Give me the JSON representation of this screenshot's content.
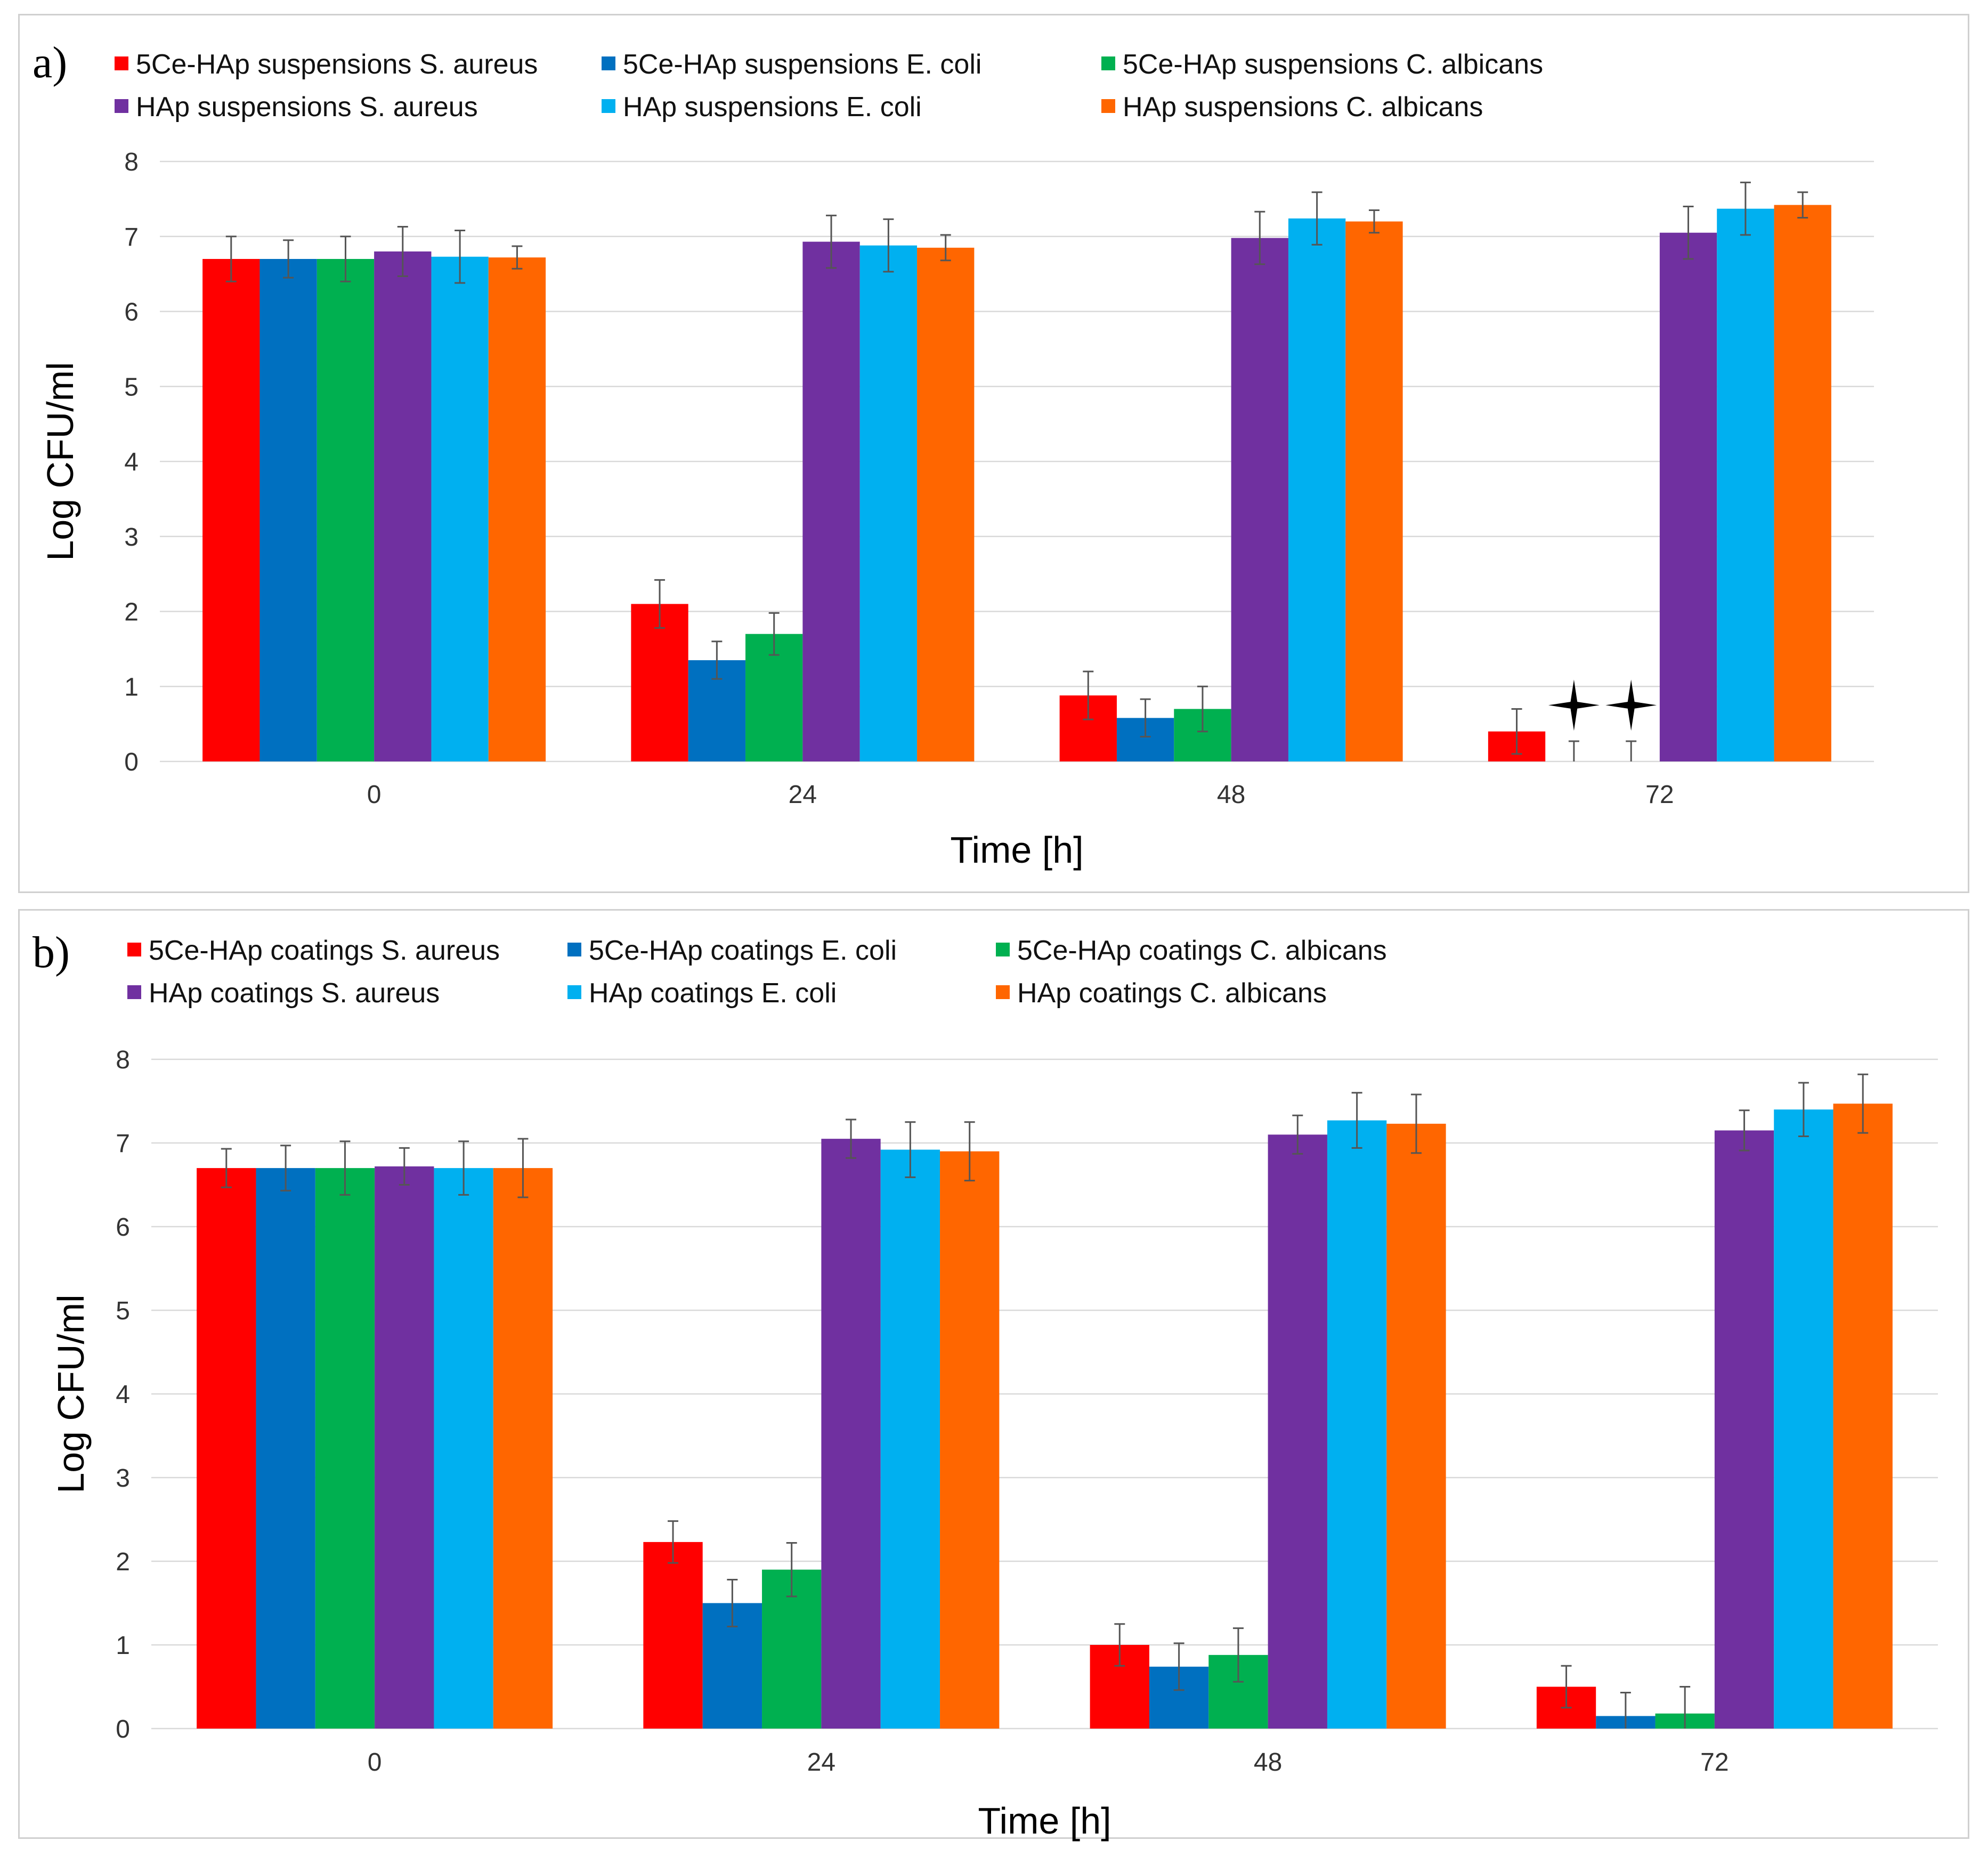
{
  "chart_data": [
    {
      "type": "bar",
      "panel_label": "a)",
      "categories": [
        "0",
        "24",
        "48",
        "72"
      ],
      "xlabel": "Time [h]",
      "ylabel": "Log CFU/ml",
      "ylim": [
        0,
        8
      ],
      "yticks": [
        "0",
        "1",
        "2",
        "3",
        "4",
        "5",
        "6",
        "7",
        "8"
      ],
      "legend": "top-left",
      "series": [
        {
          "name": "5Ce-HAp suspensions S. aureus",
          "color": "#ff0000",
          "values": [
            6.7,
            2.1,
            0.88,
            0.4
          ],
          "errors": [
            0.3,
            0.32,
            0.32,
            0.3
          ]
        },
        {
          "name": "5Ce-HAp suspensions E. coli",
          "color": "#0070c0",
          "values": [
            6.7,
            1.35,
            0.58,
            0
          ],
          "errors": [
            0.25,
            0.25,
            0.25,
            0.27
          ]
        },
        {
          "name": "5Ce-HAp suspensions C. albicans",
          "color": "#00b050",
          "values": [
            6.7,
            1.7,
            0.7,
            0
          ],
          "errors": [
            0.3,
            0.28,
            0.3,
            0.27
          ]
        },
        {
          "name": "HAp suspensions S. aureus",
          "color": "#7030a0",
          "values": [
            6.8,
            6.93,
            6.98,
            7.05
          ],
          "errors": [
            0.33,
            0.35,
            0.35,
            0.35
          ]
        },
        {
          "name": "HAp suspensions E. coli",
          "color": "#00b0f0",
          "values": [
            6.73,
            6.88,
            7.24,
            7.37
          ],
          "errors": [
            0.35,
            0.35,
            0.35,
            0.35
          ]
        },
        {
          "name": "HAp suspensions C. albicans",
          "color": "#ff6600",
          "values": [
            6.72,
            6.85,
            7.2,
            7.42
          ],
          "errors": [
            0.15,
            0.17,
            0.15,
            0.17
          ]
        }
      ],
      "annotations": [
        {
          "category": "72",
          "series": 1,
          "marker": "four-point-star-icon"
        },
        {
          "category": "72",
          "series": 2,
          "marker": "four-point-star-icon"
        }
      ]
    },
    {
      "type": "bar",
      "panel_label": "b)",
      "categories": [
        "0",
        "24",
        "48",
        "72"
      ],
      "xlabel": "Time [h]",
      "ylabel": "Log CFU/ml",
      "ylim": [
        0,
        8
      ],
      "yticks": [
        "0",
        "1",
        "2",
        "3",
        "4",
        "5",
        "6",
        "7",
        "8"
      ],
      "legend": "top-left",
      "series": [
        {
          "name": "5Ce-HAp coatings S. aureus",
          "color": "#ff0000",
          "values": [
            6.7,
            2.23,
            1.0,
            0.5
          ],
          "errors": [
            0.23,
            0.25,
            0.25,
            0.25
          ]
        },
        {
          "name": "5Ce-HAp coatings E. coli",
          "color": "#0070c0",
          "values": [
            6.7,
            1.5,
            0.74,
            0.15
          ],
          "errors": [
            0.27,
            0.28,
            0.28,
            0.28
          ]
        },
        {
          "name": "5Ce-HAp coatings C. albicans",
          "color": "#00b050",
          "values": [
            6.7,
            1.9,
            0.88,
            0.18
          ],
          "errors": [
            0.32,
            0.32,
            0.32,
            0.32
          ]
        },
        {
          "name": "HAp coatings S. aureus",
          "color": "#7030a0",
          "values": [
            6.72,
            7.05,
            7.1,
            7.15
          ],
          "errors": [
            0.22,
            0.23,
            0.23,
            0.24
          ]
        },
        {
          "name": "HAp coatings E. coli",
          "color": "#00b0f0",
          "values": [
            6.7,
            6.92,
            7.27,
            7.4
          ],
          "errors": [
            0.32,
            0.33,
            0.33,
            0.32
          ]
        },
        {
          "name": "HAp coatings C. albicans",
          "color": "#ff6600",
          "values": [
            6.7,
            6.9,
            7.23,
            7.47
          ],
          "errors": [
            0.35,
            0.35,
            0.35,
            0.35
          ]
        }
      ],
      "annotations": []
    }
  ]
}
